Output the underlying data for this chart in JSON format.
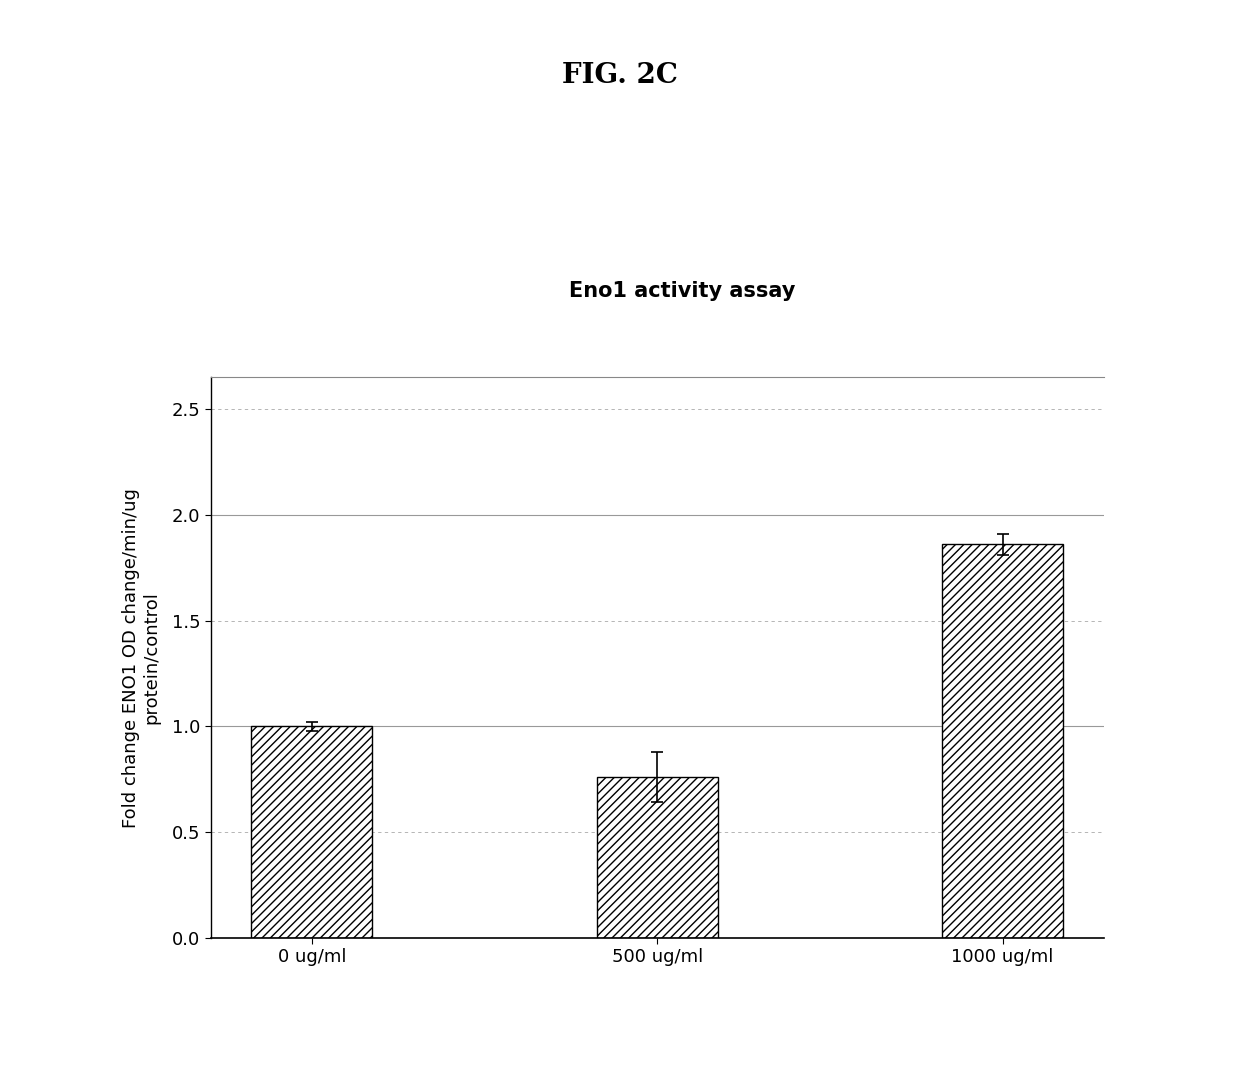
{
  "title": "Eno1 activity assay",
  "fig_label": "FIG. 2C",
  "categories": [
    "0 ug/ml",
    "500 ug/ml",
    "1000 ug/ml"
  ],
  "values": [
    1.0,
    0.76,
    1.86
  ],
  "errors": [
    0.02,
    0.12,
    0.05
  ],
  "ylabel": "Fold change ENO1 OD change/min/ug\nprotein/control",
  "ylim": [
    0.0,
    2.65
  ],
  "yticks": [
    0.0,
    0.5,
    1.0,
    1.5,
    2.0,
    2.5
  ],
  "background_color": "#ffffff",
  "bar_facecolor": "#ffffff",
  "bar_edgecolor": "#000000",
  "hatch": "////",
  "title_fontsize": 15,
  "ylabel_fontsize": 13,
  "tick_fontsize": 13,
  "fig_label_fontsize": 20,
  "bar_width": 0.35,
  "capsize": 4
}
